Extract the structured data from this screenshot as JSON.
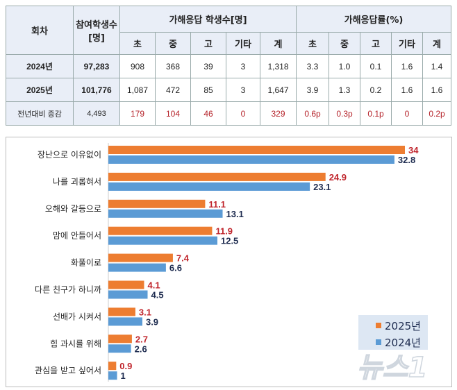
{
  "table": {
    "headers": {
      "round": "회차",
      "participants": "참여학생수[명]",
      "count_group": "가해응답 학생수[명]",
      "rate_group": "가해응답률(%)",
      "sub": [
        "초",
        "중",
        "고",
        "기타",
        "계",
        "초",
        "중",
        "고",
        "기타",
        "계"
      ]
    },
    "rows": [
      {
        "label": "2024년",
        "participants": "97,283",
        "values": [
          "908",
          "368",
          "39",
          "3",
          "1,318",
          "3.3",
          "1.0",
          "0.1",
          "1.6",
          "1.4"
        ]
      },
      {
        "label": "2025년",
        "participants": "101,776",
        "values": [
          "1,087",
          "472",
          "85",
          "3",
          "1,647",
          "3.9",
          "1.3",
          "0.2",
          "1.6",
          "1.6"
        ]
      },
      {
        "label": "전년대비 증감",
        "participants": "4,493",
        "values": [
          "179",
          "104",
          "46",
          "0",
          "329",
          "0.6p",
          "0.3p",
          "0.1p",
          "0",
          "0.2p"
        ]
      }
    ]
  },
  "chart_data": {
    "type": "bar",
    "orientation": "horizontal",
    "categories": [
      "장난으로 이유없이",
      "나를 괴롭혀서",
      "오해와 갈등으로",
      "맘에 안들어서",
      "화풀이로",
      "다른 친구가 하니까",
      "선배가 시켜서",
      "힘 과시를 위해",
      "관심을 받고 싶어서"
    ],
    "series": [
      {
        "name": "2025년",
        "color": "#ed7d31",
        "label_color": "#c0262d",
        "values": [
          34,
          24.9,
          11.1,
          11.9,
          7.4,
          4.1,
          3.1,
          2.7,
          0.9
        ]
      },
      {
        "name": "2024년",
        "color": "#5b9bd5",
        "label_color": "#1d2b4f",
        "values": [
          32.8,
          23.1,
          13.1,
          12.5,
          6.6,
          4.5,
          3.9,
          2.6,
          1
        ]
      }
    ],
    "xlim": [
      0,
      34
    ],
    "legend": "bottom-right",
    "grid": false
  },
  "watermark": "뉴스1"
}
